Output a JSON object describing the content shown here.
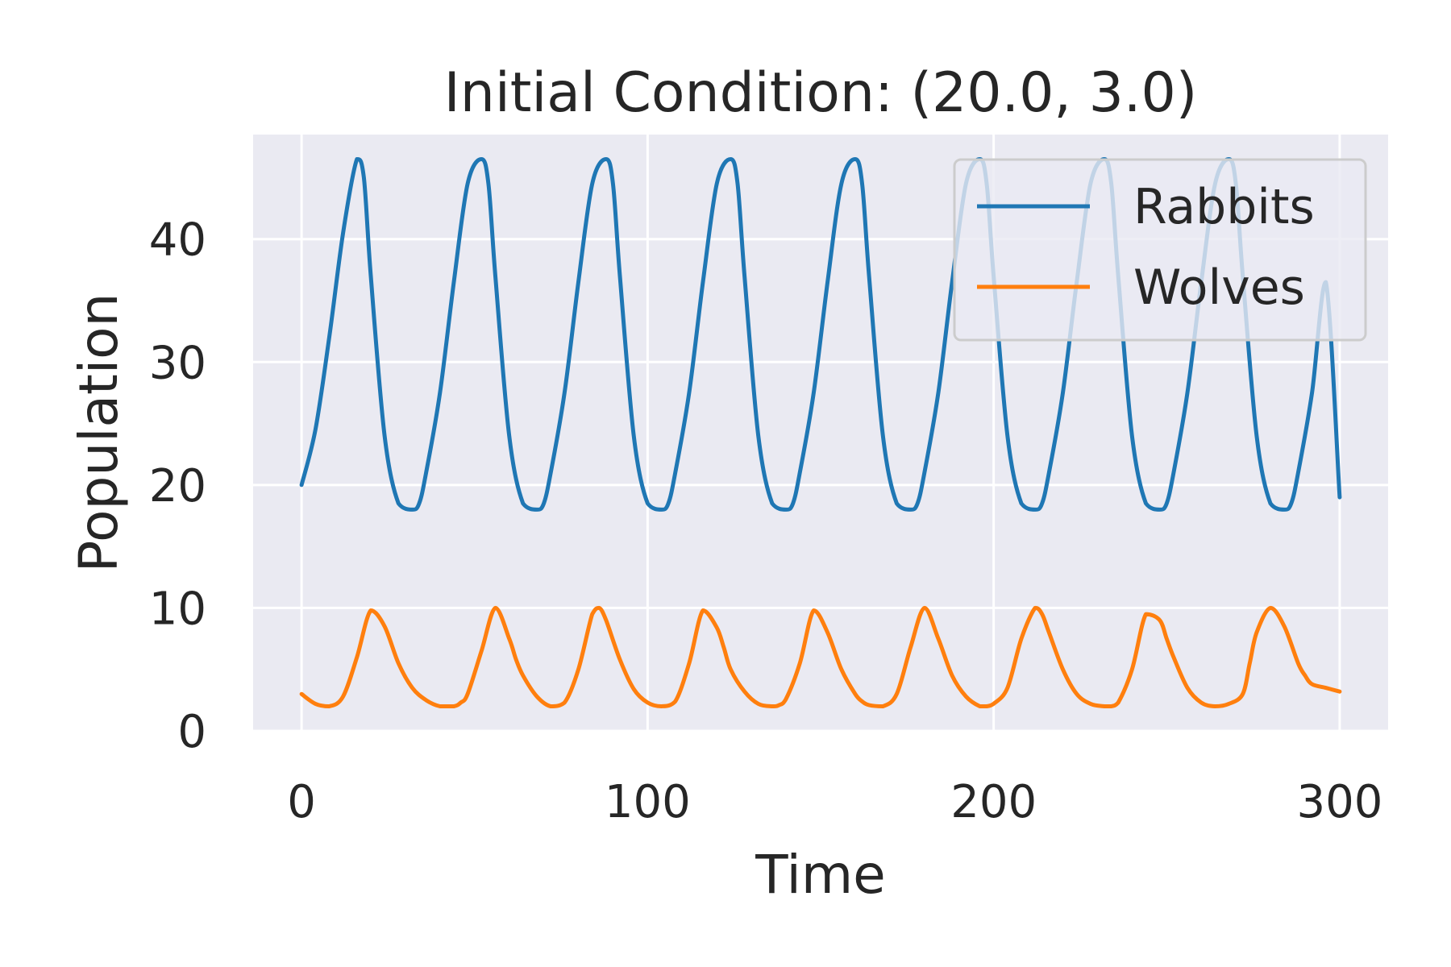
{
  "chart_data": {
    "type": "line",
    "title": "Initial Condition: (20.0, 3.0)",
    "xlabel": "Time",
    "ylabel": "Population",
    "xlim": [
      -14,
      314
    ],
    "ylim": [
      0,
      48.5
    ],
    "xticks": [
      0,
      100,
      200,
      300
    ],
    "yticks": [
      0,
      10,
      20,
      30,
      40
    ],
    "grid": true,
    "legend_position": "upper right",
    "colors": {
      "background": "#eaeaf2",
      "grid": "#ffffff",
      "Rabbits": "#1f77b4",
      "Wolves": "#ff7f0e"
    },
    "series": [
      {
        "name": "Rabbits",
        "x": [
          0,
          4,
          8,
          12,
          16,
          18,
          20,
          24,
          28,
          32,
          34,
          36,
          40,
          44,
          48,
          52,
          54,
          56,
          60,
          64,
          68,
          70,
          72,
          76,
          80,
          84,
          88,
          90,
          92,
          96,
          100,
          104,
          106,
          108,
          112,
          116,
          120,
          124,
          126,
          128,
          132,
          136,
          140,
          142,
          144,
          148,
          152,
          156,
          160,
          162,
          164,
          168,
          172,
          176,
          178,
          180,
          184,
          188,
          192,
          196,
          198,
          200,
          204,
          208,
          212,
          214,
          216,
          220,
          224,
          228,
          232,
          234,
          236,
          240,
          244,
          248,
          250,
          252,
          256,
          260,
          264,
          268,
          270,
          272,
          276,
          280,
          284,
          286,
          288,
          292,
          296,
          300
        ],
        "y": [
          20.0,
          24.5,
          32.0,
          40.5,
          46.5,
          45.0,
          37.0,
          24.0,
          18.5,
          18.0,
          18.5,
          21.0,
          27.5,
          36.5,
          44.5,
          46.5,
          44.5,
          37.0,
          24.0,
          18.5,
          18.0,
          18.5,
          21.0,
          27.5,
          36.5,
          44.5,
          46.5,
          44.5,
          37.0,
          24.0,
          18.5,
          18.0,
          18.5,
          21.0,
          27.5,
          36.5,
          44.5,
          46.5,
          44.5,
          37.0,
          24.0,
          18.5,
          18.0,
          18.5,
          21.0,
          27.5,
          36.5,
          44.5,
          46.5,
          44.5,
          37.0,
          24.0,
          18.5,
          18.0,
          18.5,
          21.0,
          27.5,
          36.5,
          44.5,
          46.5,
          44.5,
          37.0,
          24.0,
          18.5,
          18.0,
          18.5,
          21.0,
          27.5,
          36.5,
          44.5,
          46.5,
          44.5,
          37.0,
          24.0,
          18.5,
          18.0,
          18.5,
          21.0,
          27.5,
          36.5,
          44.5,
          46.5,
          44.5,
          37.0,
          24.0,
          18.5,
          18.0,
          18.5,
          21.0,
          27.5,
          36.5,
          19.0
        ]
      },
      {
        "name": "Wolves",
        "x": [
          0,
          4,
          8,
          12,
          16,
          20,
          24,
          28,
          32,
          36,
          40,
          44,
          46,
          48,
          52,
          56,
          60,
          62,
          64,
          68,
          72,
          76,
          80,
          84,
          86,
          88,
          92,
          96,
          100,
          104,
          108,
          112,
          116,
          120,
          122,
          124,
          128,
          132,
          136,
          138,
          140,
          144,
          148,
          152,
          156,
          160,
          162,
          164,
          168,
          172,
          176,
          180,
          184,
          188,
          192,
          196,
          198,
          200,
          204,
          208,
          212,
          214,
          216,
          220,
          224,
          228,
          232,
          234,
          236,
          240,
          244,
          248,
          250,
          252,
          256,
          260,
          264,
          268,
          272,
          274,
          276,
          280,
          284,
          288,
          290,
          292,
          296,
          300
        ],
        "y": [
          3.0,
          2.2,
          2.0,
          2.8,
          6.0,
          9.8,
          8.5,
          5.5,
          3.5,
          2.5,
          2.0,
          2.0,
          2.3,
          3.0,
          6.5,
          10.0,
          7.5,
          5.8,
          4.5,
          2.8,
          2.0,
          2.3,
          5.0,
          9.5,
          10.0,
          9.0,
          5.8,
          3.4,
          2.3,
          2.0,
          2.4,
          5.5,
          9.8,
          8.4,
          6.8,
          5.0,
          3.2,
          2.2,
          2.0,
          2.1,
          2.6,
          5.5,
          9.8,
          8.0,
          5.0,
          3.0,
          2.4,
          2.1,
          2.0,
          3.0,
          6.8,
          10.0,
          7.5,
          4.5,
          2.8,
          2.0,
          2.0,
          2.2,
          3.5,
          7.5,
          10.0,
          9.5,
          8.0,
          5.0,
          3.0,
          2.2,
          2.0,
          2.0,
          2.3,
          5.0,
          9.5,
          9.0,
          7.5,
          6.0,
          3.5,
          2.3,
          2.0,
          2.2,
          3.0,
          5.5,
          8.0,
          10.0,
          8.5,
          5.5,
          4.5,
          3.8,
          3.5,
          3.2
        ]
      }
    ]
  }
}
